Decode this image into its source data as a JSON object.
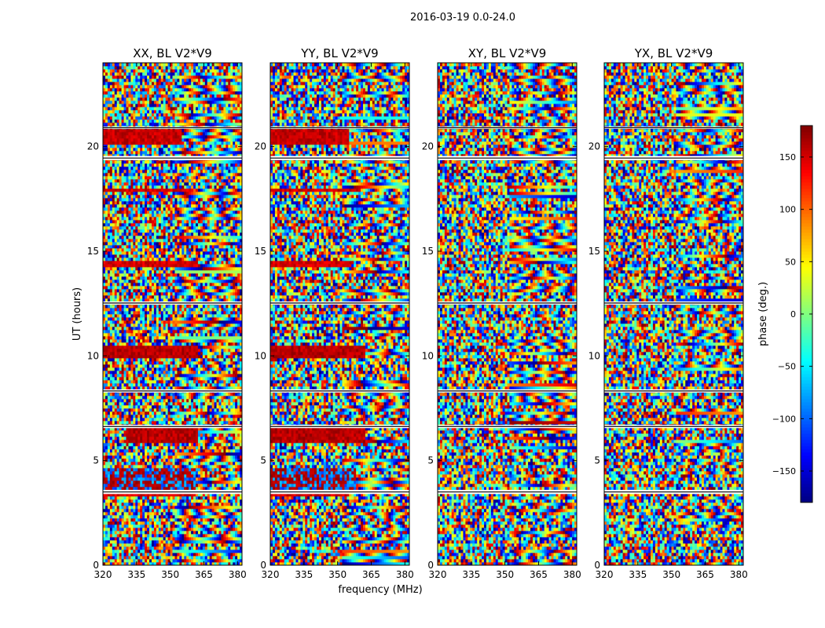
{
  "figure": {
    "suptitle": "2016-03-19 0.0-24.0",
    "ylabel": "UT (hours)",
    "xlabel": "frequency (MHz)"
  },
  "colorbar": {
    "label": "phase (deg.)",
    "colormap": "jet",
    "range": [
      -180,
      180
    ],
    "ticks": [
      150,
      100,
      50,
      0,
      -50,
      -100,
      -150
    ],
    "tick_labels": [
      "150",
      "100",
      "50",
      "0",
      "−50",
      "−100",
      "−150"
    ]
  },
  "chart_data": [
    {
      "type": "heatmap",
      "title": "XX, BL V2*V9",
      "xlabel": "frequency (MHz)",
      "ylabel": "UT (hours)",
      "xlim": [
        320,
        382
      ],
      "ylim": [
        0,
        24
      ],
      "xticks": [
        320,
        335,
        350,
        365,
        380
      ],
      "yticks": [
        0,
        5,
        10,
        15,
        20
      ],
      "value_range": [
        -180,
        180
      ],
      "flagged_bands_ut": [
        [
          3.4,
          3.6
        ],
        [
          6.55,
          6.7
        ],
        [
          8.25,
          8.4
        ],
        [
          12.45,
          12.6
        ],
        [
          19.35,
          19.55
        ],
        [
          20.85,
          20.95
        ]
      ],
      "coherent_phase_bands": [
        {
          "ut": [
            3.35,
            3.55
          ],
          "freq": [
            320,
            361
          ],
          "phase": 150
        },
        {
          "ut": [
            3.6,
            4.6
          ],
          "freq": [
            320,
            361
          ],
          "phase": "mixed -120..150"
        },
        {
          "ut": [
            5.8,
            6.6
          ],
          "freq": [
            330,
            362
          ],
          "phase": 160
        },
        {
          "ut": [
            9.9,
            10.5
          ],
          "freq": [
            320,
            362
          ],
          "phase": 160
        },
        {
          "ut": [
            14.3,
            14.6
          ],
          "freq": [
            320,
            362
          ],
          "phase": 150
        },
        {
          "ut": [
            17.8,
            18.05
          ],
          "freq": [
            320,
            360
          ],
          "phase": 150
        },
        {
          "ut": [
            20.1,
            20.9
          ],
          "freq": [
            320,
            355
          ],
          "phase": 155
        }
      ]
    },
    {
      "type": "heatmap",
      "title": "YY, BL V2*V9",
      "xlabel": "frequency (MHz)",
      "ylabel": "UT (hours)",
      "xlim": [
        320,
        382
      ],
      "ylim": [
        0,
        24
      ],
      "xticks": [
        320,
        335,
        350,
        365,
        380
      ],
      "yticks": [
        0,
        5,
        10,
        15,
        20
      ],
      "value_range": [
        -180,
        180
      ],
      "flagged_bands_ut": [
        [
          3.4,
          3.6
        ],
        [
          6.55,
          6.7
        ],
        [
          8.25,
          8.4
        ],
        [
          12.45,
          12.6
        ],
        [
          19.35,
          19.55
        ],
        [
          20.85,
          20.95
        ]
      ],
      "coherent_phase_bands": [
        {
          "ut": [
            3.35,
            3.55
          ],
          "freq": [
            320,
            355
          ],
          "phase": 150
        },
        {
          "ut": [
            3.6,
            4.6
          ],
          "freq": [
            320,
            358
          ],
          "phase": "mixed -100..150"
        },
        {
          "ut": [
            5.8,
            6.6
          ],
          "freq": [
            320,
            362
          ],
          "phase": 160
        },
        {
          "ut": [
            9.9,
            10.5
          ],
          "freq": [
            320,
            362
          ],
          "phase": 160
        },
        {
          "ut": [
            14.3,
            14.6
          ],
          "freq": [
            320,
            356
          ],
          "phase": 150
        },
        {
          "ut": [
            17.8,
            18.05
          ],
          "freq": [
            320,
            360
          ],
          "phase": 150
        },
        {
          "ut": [
            20.1,
            20.9
          ],
          "freq": [
            320,
            355
          ],
          "phase": 155
        }
      ]
    },
    {
      "type": "heatmap",
      "title": "XY, BL V2*V9",
      "xlabel": "frequency (MHz)",
      "ylabel": "UT (hours)",
      "xlim": [
        320,
        382
      ],
      "ylim": [
        0,
        24
      ],
      "xticks": [
        320,
        335,
        350,
        365,
        380
      ],
      "yticks": [
        0,
        5,
        10,
        15,
        20
      ],
      "value_range": [
        -180,
        180
      ],
      "flagged_bands_ut": [
        [
          3.4,
          3.6
        ],
        [
          6.55,
          6.7
        ],
        [
          8.25,
          8.4
        ],
        [
          12.45,
          12.6
        ],
        [
          19.35,
          19.55
        ],
        [
          20.85,
          20.95
        ]
      ],
      "coherent_phase_bands": []
    },
    {
      "type": "heatmap",
      "title": "YX, BL V2*V9",
      "xlabel": "frequency (MHz)",
      "ylabel": "UT (hours)",
      "xlim": [
        320,
        382
      ],
      "ylim": [
        0,
        24
      ],
      "xticks": [
        320,
        335,
        350,
        365,
        380
      ],
      "yticks": [
        0,
        5,
        10,
        15,
        20
      ],
      "value_range": [
        -180,
        180
      ],
      "flagged_bands_ut": [
        [
          3.4,
          3.6
        ],
        [
          6.55,
          6.7
        ],
        [
          8.25,
          8.4
        ],
        [
          12.45,
          12.6
        ],
        [
          19.35,
          19.55
        ],
        [
          20.85,
          20.95
        ]
      ],
      "coherent_phase_bands": []
    }
  ]
}
